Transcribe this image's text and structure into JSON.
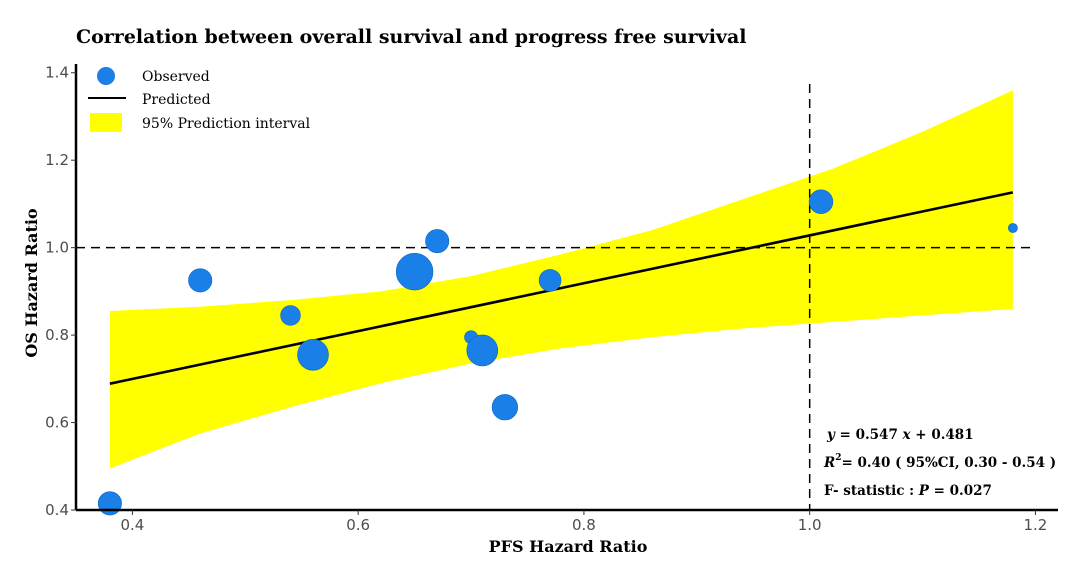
{
  "chart_data": {
    "type": "scatter",
    "title": "Correlation between overall survival and progress free survival",
    "xlabel": "PFS Hazard Ratio",
    "ylabel": "OS Hazard Ratio",
    "xlim": [
      0.35,
      1.22
    ],
    "ylim": [
      0.4,
      1.42
    ],
    "xticks": [
      {
        "value": 0.4,
        "label": "0.4"
      },
      {
        "value": 0.6,
        "label": "0.6"
      },
      {
        "value": 0.8,
        "label": "0.8"
      },
      {
        "value": 1.0,
        "label": "1.0"
      },
      {
        "value": 1.2,
        "label": "1.2"
      }
    ],
    "yticks": [
      {
        "value": 0.4,
        "label": "0.4"
      },
      {
        "value": 0.6,
        "label": "0.6"
      },
      {
        "value": 0.8,
        "label": "0.8"
      },
      {
        "value": 1.0,
        "label": "1.0"
      },
      {
        "value": 1.2,
        "label": "1.2"
      },
      {
        "value": 1.4,
        "label": "1.4"
      }
    ],
    "grid": false,
    "legend_position": "top-left",
    "legend": {
      "observed": "Observed",
      "predicted": "Predicted",
      "interval": "95% Prediction interval"
    },
    "colors": {
      "points": "#1a7fe6",
      "line": "#000000",
      "band": "#ffff00",
      "reference": "#000000"
    },
    "observed_points": [
      {
        "x": 0.38,
        "y": 0.415,
        "weight": 2
      },
      {
        "x": 0.46,
        "y": 0.925,
        "weight": 2
      },
      {
        "x": 0.54,
        "y": 0.845,
        "weight": 1.3
      },
      {
        "x": 0.56,
        "y": 0.755,
        "weight": 4
      },
      {
        "x": 0.65,
        "y": 0.945,
        "weight": 6
      },
      {
        "x": 0.67,
        "y": 1.015,
        "weight": 2
      },
      {
        "x": 0.7,
        "y": 0.795,
        "weight": 0.4
      },
      {
        "x": 0.71,
        "y": 0.765,
        "weight": 4
      },
      {
        "x": 0.73,
        "y": 0.635,
        "weight": 2.5
      },
      {
        "x": 0.77,
        "y": 0.925,
        "weight": 1.7
      },
      {
        "x": 1.01,
        "y": 1.105,
        "weight": 2.1
      },
      {
        "x": 1.18,
        "y": 1.045,
        "weight": 0.1
      }
    ],
    "regression": {
      "slope": 0.547,
      "intercept": 0.481,
      "x_range": [
        0.38,
        1.18
      ]
    },
    "prediction_interval": {
      "x": [
        0.38,
        0.46,
        0.54,
        0.62,
        0.7,
        0.78,
        0.86,
        0.94,
        1.02,
        1.1,
        1.18
      ],
      "lower": [
        0.495,
        0.575,
        0.635,
        0.69,
        0.735,
        0.77,
        0.795,
        0.815,
        0.83,
        0.845,
        0.86
      ],
      "upper": [
        0.855,
        0.865,
        0.88,
        0.9,
        0.935,
        0.985,
        1.04,
        1.11,
        1.18,
        1.265,
        1.36
      ]
    },
    "reference_lines": {
      "x": 1.0,
      "y": 1.0
    },
    "annotations": {
      "equation": {
        "y": "y",
        "mid": " = 0.547 ",
        "x": "x",
        "end": " + 0.481"
      },
      "r2": {
        "r": "R",
        "sup": "2",
        "rest": "= 0.40 ( 95%CI, 0.30 - 0.54 )"
      },
      "f_stat": {
        "pre": "F- statistic : ",
        "p": "P",
        "post": " = 0.027"
      }
    }
  }
}
